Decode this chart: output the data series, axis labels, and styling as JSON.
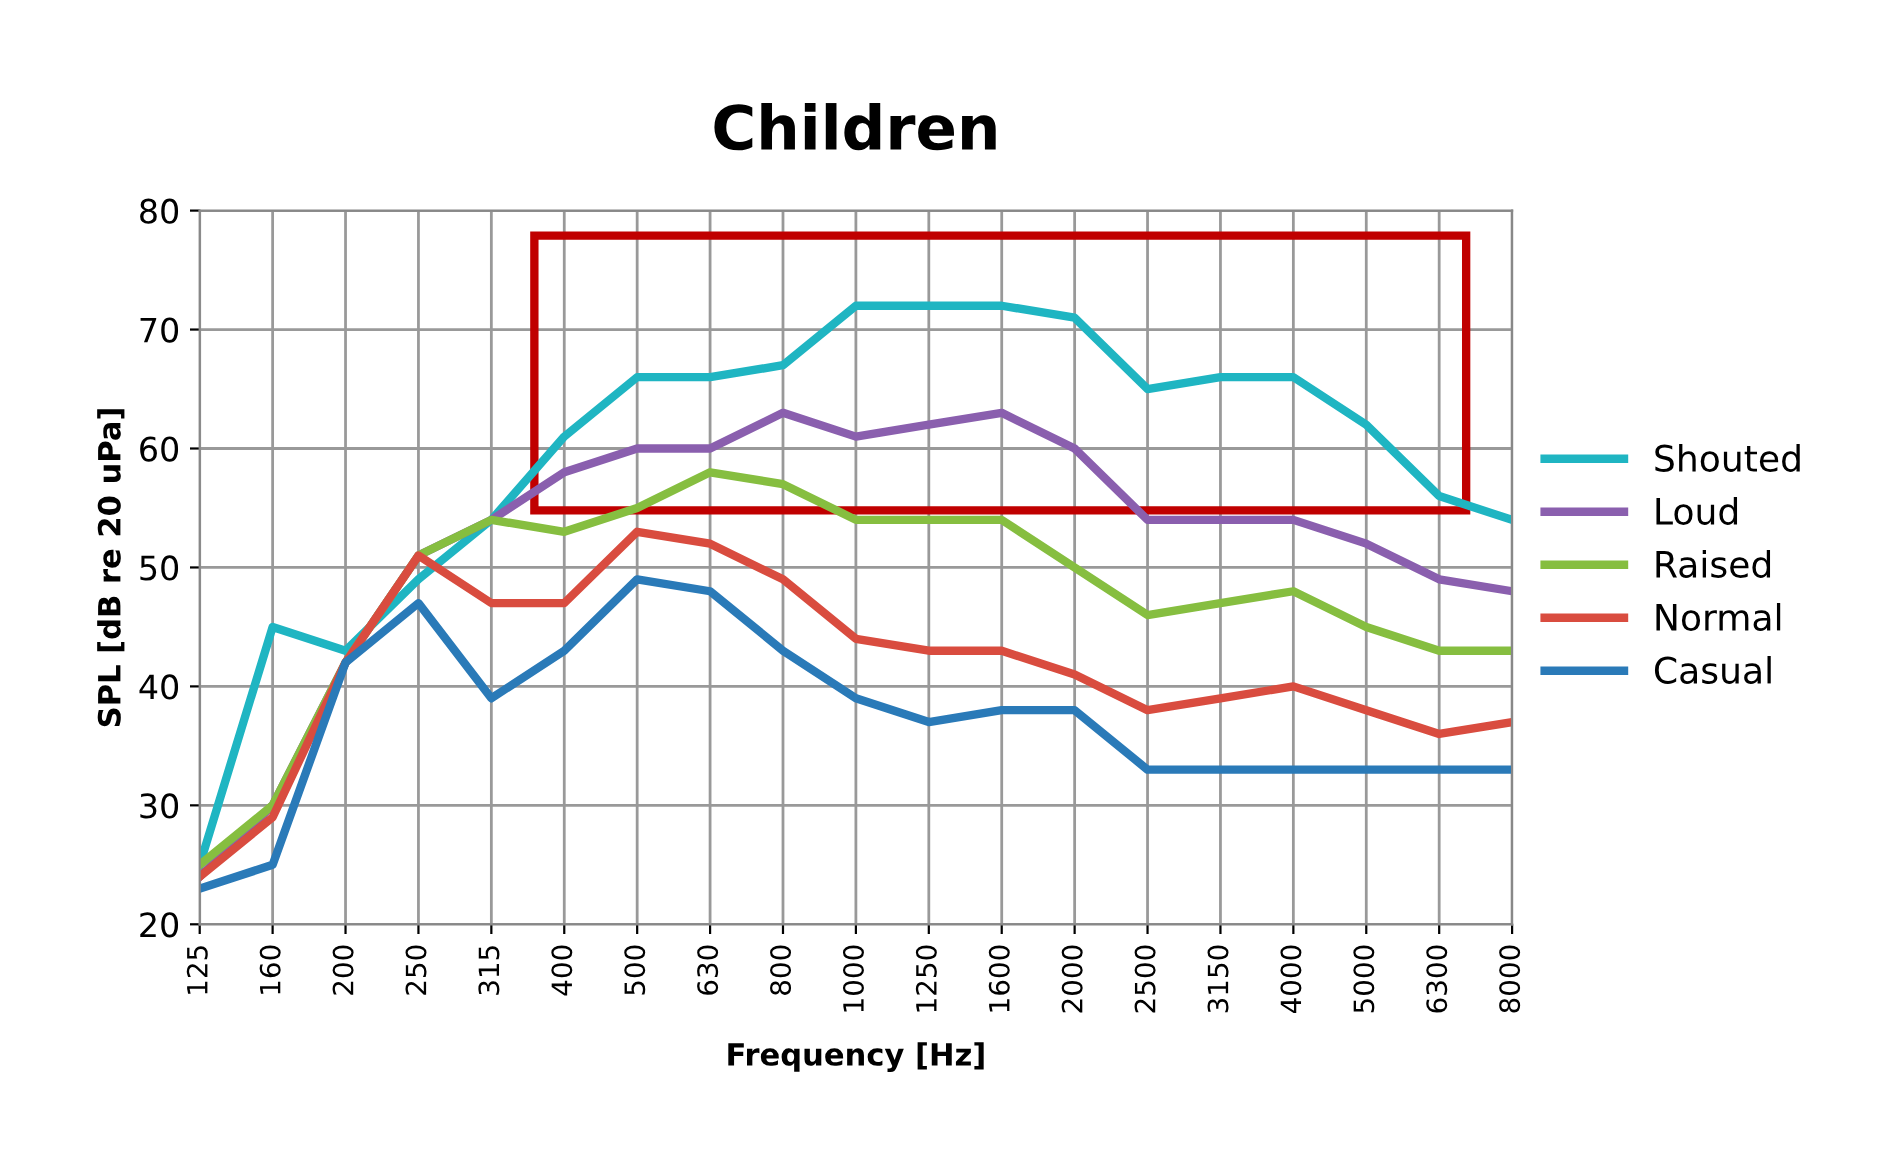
{
  "chart_data": {
    "type": "line",
    "title": "Children",
    "xlabel": "Frequency [Hz]",
    "ylabel": "SPL [dB re 20 uPa]",
    "categories": [
      "125",
      "160",
      "200",
      "250",
      "315",
      "400",
      "500",
      "630",
      "800",
      "1000",
      "1250",
      "1600",
      "2000",
      "2500",
      "3150",
      "4000",
      "5000",
      "6300",
      "8000"
    ],
    "series": [
      {
        "name": "Shouted",
        "color": "#1fb5c2",
        "values": [
          25,
          45,
          43,
          49,
          54,
          61,
          66,
          66,
          67,
          72,
          72,
          72,
          71,
          65,
          66,
          66,
          62,
          56,
          54
        ]
      },
      {
        "name": "Loud",
        "color": "#8a5fae",
        "values": [
          24,
          30,
          42,
          51,
          54,
          58,
          60,
          60,
          63,
          61,
          62,
          63,
          60,
          54,
          54,
          54,
          52,
          49,
          48
        ]
      },
      {
        "name": "Raised",
        "color": "#86be40",
        "values": [
          25,
          30,
          42,
          51,
          54,
          53,
          55,
          58,
          57,
          54,
          54,
          54,
          50,
          46,
          47,
          48,
          45,
          43,
          43
        ]
      },
      {
        "name": "Normal",
        "color": "#d94c3f",
        "values": [
          24,
          29,
          42,
          51,
          47,
          47,
          53,
          52,
          49,
          44,
          43,
          43,
          41,
          38,
          39,
          40,
          38,
          36,
          37
        ]
      },
      {
        "name": "Casual",
        "color": "#2a7ab8",
        "values": [
          23,
          25,
          42,
          47,
          39,
          43,
          49,
          48,
          43,
          39,
          37,
          38,
          38,
          33,
          33,
          33,
          33,
          33,
          33
        ]
      }
    ],
    "ylim": [
      20,
      80
    ],
    "yticks": [
      20,
      30,
      40,
      50,
      60,
      70,
      80
    ],
    "grid": true,
    "legend": "right",
    "marker": "none",
    "line_style": "solid"
  }
}
